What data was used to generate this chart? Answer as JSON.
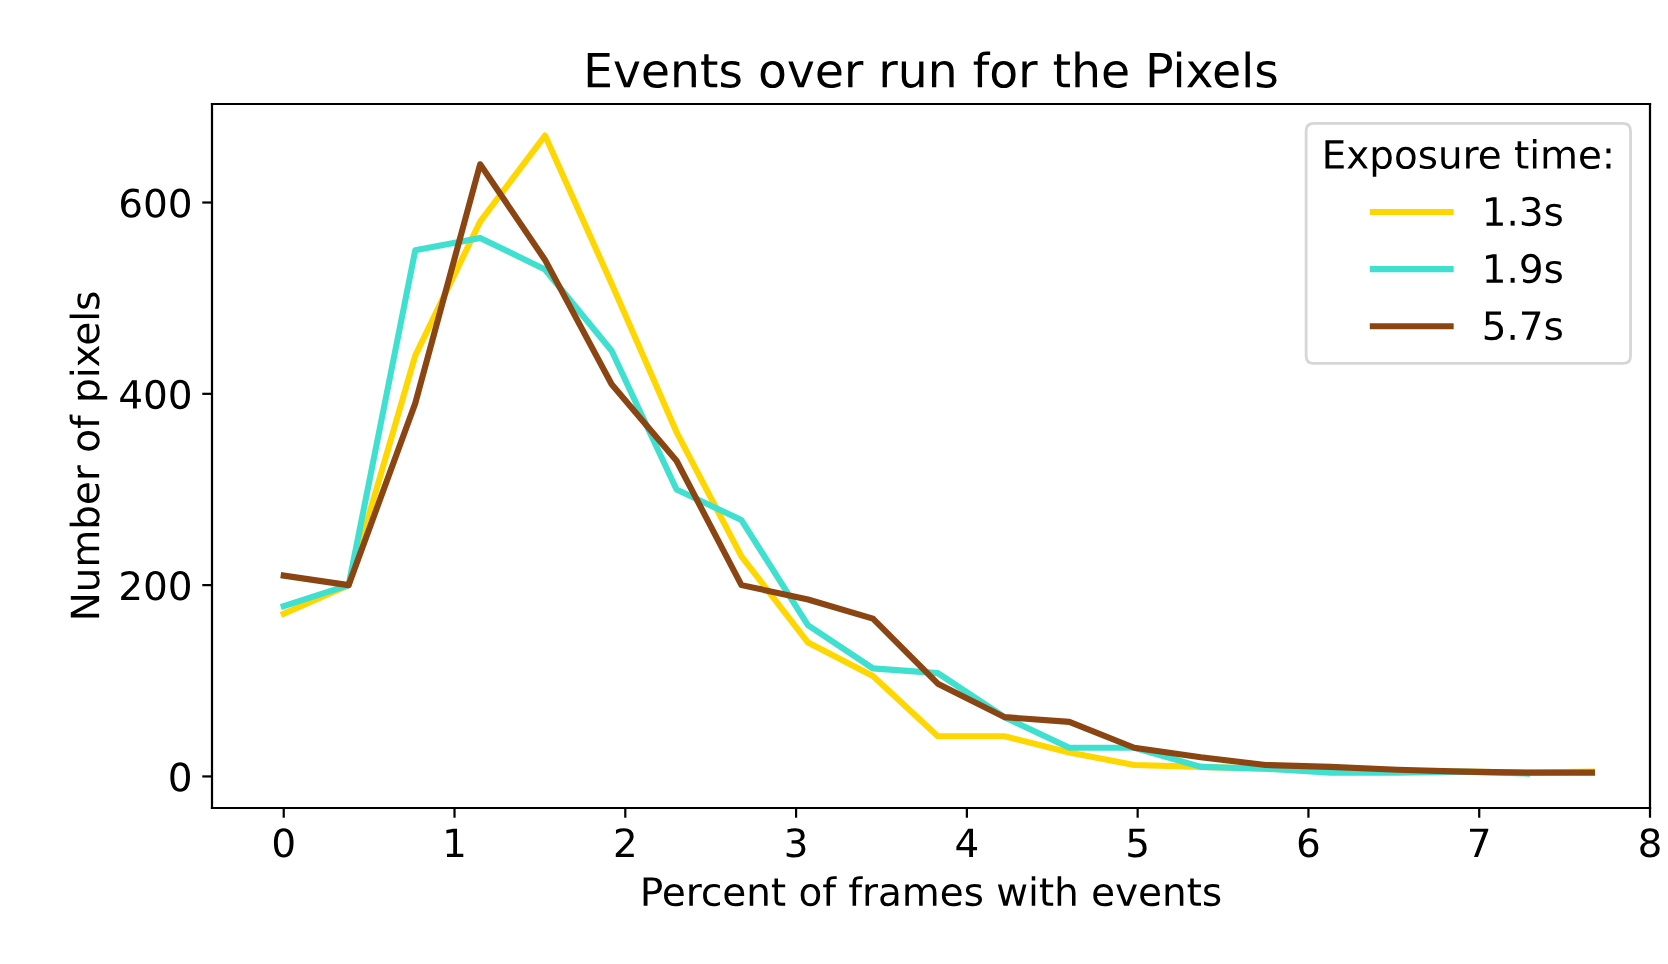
{
  "chart_data": {
    "type": "line",
    "title": "Events over run for the Pixels",
    "xlabel": "Percent of frames with events",
    "ylabel": "Number of pixels",
    "legend_title": "Exposure time:",
    "legend": "top right",
    "grid": false,
    "x": [
      0,
      0.38,
      0.77,
      1.15,
      1.53,
      1.92,
      2.3,
      2.68,
      3.07,
      3.45,
      3.83,
      4.22,
      4.6,
      4.98,
      5.37,
      5.75,
      6.13,
      6.52,
      6.9,
      7.28,
      7.66
    ],
    "xlim": [
      -0.42,
      8
    ],
    "xticks": [
      0,
      1,
      2,
      3,
      4,
      5,
      6,
      7,
      8
    ],
    "ylim": [
      -33,
      703
    ],
    "yticks": [
      0,
      200,
      400,
      600
    ],
    "series": [
      {
        "name": "1.3s",
        "color": "#ffd700",
        "values": [
          170,
          200,
          440,
          580,
          670,
          515,
          360,
          230,
          140,
          105,
          42,
          42,
          25,
          12,
          10,
          8,
          7,
          6,
          5,
          4,
          5
        ]
      },
      {
        "name": "1.9s",
        "color": "#40e0d0",
        "values": [
          178,
          200,
          550,
          563,
          530,
          445,
          300,
          268,
          158,
          113,
          108,
          62,
          30,
          30,
          10,
          8,
          4,
          4,
          5,
          3,
          null
        ]
      },
      {
        "name": "5.7s",
        "color": "#8b4513",
        "values": [
          210,
          200,
          390,
          640,
          540,
          410,
          330,
          200,
          185,
          165,
          97,
          62,
          57,
          30,
          20,
          12,
          10,
          7,
          5,
          4,
          4
        ]
      }
    ]
  }
}
